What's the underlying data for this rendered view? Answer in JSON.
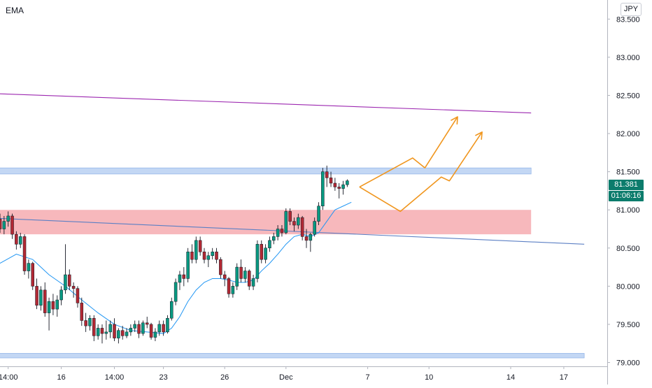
{
  "header": {
    "indicator": "EMA",
    "currency": "JPY"
  },
  "price_tags": {
    "last_price": "81.381",
    "countdown": "01:06:16",
    "color": "#0c7c6c"
  },
  "colors": {
    "bull": "#089981",
    "bear": "#b22833",
    "ema": "#2196f3",
    "trendline": "#5b7fc4",
    "channel": "#9c27b0",
    "projection": "#f0961e",
    "zone_supply": "#f7b8bc",
    "zone_support": "#c3d7f4",
    "zone_support_border": "#8fb2e8"
  },
  "chart_data": {
    "type": "candlestick",
    "title": "",
    "xlabel": "",
    "ylabel": "",
    "ylim": [
      78.95,
      83.75
    ],
    "y_ticks": [
      "79.000",
      "79.500",
      "80.000",
      "80.500",
      "81.000",
      "81.500",
      "82.000",
      "82.500",
      "83.000",
      "83.500"
    ],
    "x_ticks": [
      {
        "label": "14:00",
        "bar": 2
      },
      {
        "label": "16",
        "bar": 15
      },
      {
        "label": "14:00",
        "bar": 28
      },
      {
        "label": "23",
        "bar": 40
      },
      {
        "label": "26",
        "bar": 55
      },
      {
        "label": "Dec",
        "bar": 70
      },
      {
        "label": "7",
        "bar": 90
      },
      {
        "label": "10",
        "bar": 105
      },
      {
        "label": "14",
        "bar": 125
      },
      {
        "label": "17",
        "bar": 138
      }
    ],
    "grid": false,
    "candles": [
      [
        80.88,
        80.95,
        80.7,
        80.75
      ],
      [
        80.75,
        80.92,
        80.68,
        80.85
      ],
      [
        80.85,
        80.98,
        80.78,
        80.92
      ],
      [
        80.92,
        80.95,
        80.62,
        80.68
      ],
      [
        80.68,
        80.72,
        80.48,
        80.55
      ],
      [
        80.55,
        80.7,
        80.5,
        80.65
      ],
      [
        80.65,
        80.68,
        80.15,
        80.2
      ],
      [
        80.2,
        80.35,
        80.1,
        80.3
      ],
      [
        80.3,
        80.32,
        79.95,
        80.0
      ],
      [
        80.0,
        80.1,
        79.7,
        79.75
      ],
      [
        79.75,
        80.0,
        79.68,
        79.95
      ],
      [
        79.95,
        80.05,
        79.6,
        79.65
      ],
      [
        79.65,
        79.85,
        79.42,
        79.8
      ],
      [
        79.8,
        79.9,
        79.62,
        79.7
      ],
      [
        79.7,
        79.88,
        79.6,
        79.82
      ],
      [
        79.82,
        80.0,
        79.75,
        79.95
      ],
      [
        79.95,
        80.55,
        79.9,
        80.15
      ],
      [
        80.15,
        80.22,
        79.95,
        80.0
      ],
      [
        80.0,
        80.05,
        79.85,
        79.97
      ],
      [
        79.97,
        80.0,
        79.72,
        79.78
      ],
      [
        79.78,
        79.85,
        79.48,
        79.55
      ],
      [
        79.55,
        79.65,
        79.4,
        79.48
      ],
      [
        79.48,
        79.62,
        79.42,
        79.58
      ],
      [
        79.58,
        79.62,
        79.28,
        79.35
      ],
      [
        79.35,
        79.5,
        79.3,
        79.45
      ],
      [
        79.45,
        79.5,
        79.25,
        79.38
      ],
      [
        79.38,
        79.55,
        79.3,
        79.4
      ],
      [
        79.4,
        79.55,
        79.32,
        79.5
      ],
      [
        79.5,
        79.58,
        79.28,
        79.32
      ],
      [
        79.32,
        79.45,
        79.25,
        79.42
      ],
      [
        79.42,
        79.48,
        79.3,
        79.35
      ],
      [
        79.35,
        79.45,
        79.32,
        79.4
      ],
      [
        79.4,
        79.5,
        79.35,
        79.45
      ],
      [
        79.45,
        79.55,
        79.4,
        79.5
      ],
      [
        79.5,
        79.55,
        79.32,
        79.38
      ],
      [
        79.38,
        79.55,
        79.35,
        79.52
      ],
      [
        79.52,
        79.6,
        79.45,
        79.5
      ],
      [
        79.5,
        79.52,
        79.3,
        79.33
      ],
      [
        79.33,
        79.45,
        79.28,
        79.4
      ],
      [
        79.4,
        79.55,
        79.35,
        79.5
      ],
      [
        79.5,
        79.55,
        79.35,
        79.4
      ],
      [
        79.4,
        79.62,
        79.38,
        79.58
      ],
      [
        79.58,
        79.85,
        79.55,
        79.8
      ],
      [
        79.8,
        80.1,
        79.75,
        80.05
      ],
      [
        80.05,
        80.2,
        79.95,
        80.15
      ],
      [
        80.15,
        80.25,
        80.0,
        80.1
      ],
      [
        80.1,
        80.5,
        80.05,
        80.45
      ],
      [
        80.45,
        80.55,
        80.3,
        80.35
      ],
      [
        80.35,
        80.65,
        80.3,
        80.6
      ],
      [
        80.6,
        80.65,
        80.4,
        80.45
      ],
      [
        80.45,
        80.5,
        80.3,
        80.35
      ],
      [
        80.35,
        80.45,
        80.25,
        80.4
      ],
      [
        80.4,
        80.5,
        80.35,
        80.45
      ],
      [
        80.45,
        80.5,
        80.3,
        80.35
      ],
      [
        80.35,
        80.38,
        80.1,
        80.15
      ],
      [
        80.15,
        80.2,
        80.0,
        80.1
      ],
      [
        80.1,
        80.12,
        79.85,
        79.9
      ],
      [
        79.9,
        80.05,
        79.85,
        80.0
      ],
      [
        80.0,
        80.3,
        79.95,
        80.25
      ],
      [
        80.25,
        80.35,
        80.05,
        80.1
      ],
      [
        80.1,
        80.25,
        80.05,
        80.2
      ],
      [
        80.2,
        80.22,
        79.95,
        80.0
      ],
      [
        80.0,
        80.15,
        79.95,
        80.1
      ],
      [
        80.1,
        80.6,
        80.05,
        80.55
      ],
      [
        80.55,
        80.6,
        80.3,
        80.35
      ],
      [
        80.35,
        80.55,
        80.3,
        80.5
      ],
      [
        80.5,
        80.65,
        80.45,
        80.6
      ],
      [
        80.6,
        80.7,
        80.55,
        80.65
      ],
      [
        80.65,
        80.8,
        80.6,
        80.75
      ],
      [
        80.75,
        80.8,
        80.65,
        80.7
      ],
      [
        80.7,
        81.02,
        80.68,
        80.98
      ],
      [
        80.98,
        81.02,
        80.8,
        80.85
      ],
      [
        80.85,
        80.9,
        80.72,
        80.8
      ],
      [
        80.8,
        80.95,
        80.75,
        80.9
      ],
      [
        80.9,
        80.92,
        80.6,
        80.65
      ],
      [
        80.65,
        80.75,
        80.5,
        80.6
      ],
      [
        80.6,
        80.7,
        80.45,
        80.68
      ],
      [
        80.68,
        80.9,
        80.65,
        80.85
      ],
      [
        80.85,
        81.1,
        80.8,
        81.05
      ],
      [
        81.05,
        81.55,
        81.0,
        81.5
      ],
      [
        81.5,
        81.58,
        81.3,
        81.42
      ],
      [
        81.42,
        81.5,
        81.3,
        81.35
      ],
      [
        81.35,
        81.42,
        81.25,
        81.3
      ],
      [
        81.3,
        81.35,
        81.15,
        81.28
      ],
      [
        81.28,
        81.38,
        81.2,
        81.33
      ],
      [
        81.33,
        81.4,
        81.3,
        81.381
      ]
    ],
    "series": [
      {
        "type": "line",
        "values": [
          [
            0,
            80.3
          ],
          [
            4,
            80.42
          ],
          [
            8,
            80.35
          ],
          [
            12,
            80.15
          ],
          [
            16,
            80.0
          ],
          [
            20,
            79.82
          ],
          [
            24,
            79.65
          ],
          [
            28,
            79.5
          ],
          [
            32,
            79.42
          ],
          [
            36,
            79.4
          ],
          [
            40,
            79.38
          ],
          [
            42,
            79.45
          ],
          [
            44,
            79.6
          ],
          [
            46,
            79.8
          ],
          [
            48,
            79.95
          ],
          [
            50,
            80.05
          ],
          [
            52,
            80.1
          ],
          [
            54,
            80.1
          ],
          [
            56,
            80.08
          ],
          [
            58,
            80.05
          ],
          [
            60,
            80.05
          ],
          [
            62,
            80.08
          ],
          [
            64,
            80.2
          ],
          [
            66,
            80.3
          ],
          [
            68,
            80.42
          ],
          [
            70,
            80.55
          ],
          [
            72,
            80.65
          ],
          [
            74,
            80.68
          ],
          [
            76,
            80.65
          ],
          [
            78,
            80.7
          ],
          [
            80,
            80.85
          ],
          [
            82,
            81.0
          ],
          [
            84,
            81.05
          ],
          [
            86,
            81.1
          ]
        ]
      }
    ],
    "annotations": [
      {
        "type": "zone",
        "name": "supply",
        "y": [
          80.68,
          81.0
        ],
        "bars": [
          -5,
          130
        ]
      },
      {
        "type": "zone",
        "name": "support-upper",
        "y": [
          81.47,
          81.55
        ],
        "bars": [
          -5,
          130
        ]
      },
      {
        "type": "zone",
        "name": "support-lower",
        "y": [
          79.06,
          79.12
        ],
        "bars": [
          -5,
          143
        ]
      },
      {
        "type": "trendline",
        "name": "descending-trendline",
        "points": [
          [
            -5,
            80.9
          ],
          [
            143,
            80.55
          ]
        ]
      },
      {
        "type": "trendline",
        "name": "channel-line",
        "points": [
          [
            -5,
            82.53
          ],
          [
            130,
            82.27
          ]
        ]
      },
      {
        "type": "projection",
        "name": "projection-path-1",
        "points": [
          [
            88,
            81.3
          ],
          [
            101,
            81.68
          ],
          [
            104,
            81.55
          ],
          [
            112,
            82.22
          ]
        ]
      },
      {
        "type": "projection",
        "name": "projection-path-2",
        "points": [
          [
            88,
            81.3
          ],
          [
            98,
            80.98
          ],
          [
            108,
            81.43
          ],
          [
            110,
            81.38
          ],
          [
            118,
            82.02
          ]
        ]
      }
    ]
  }
}
